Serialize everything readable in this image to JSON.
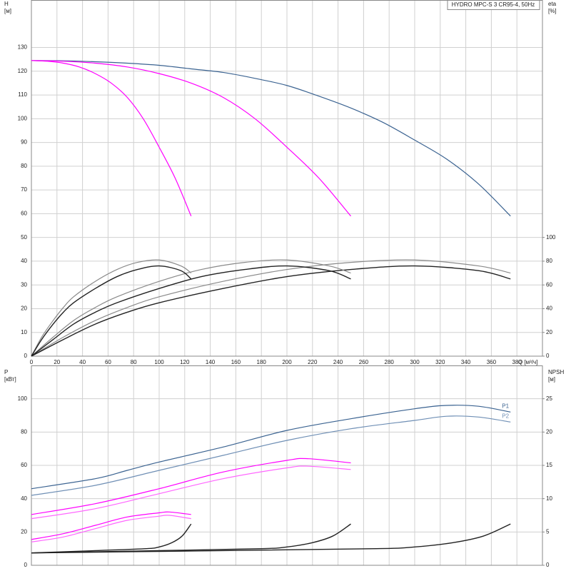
{
  "chart_data": [
    {
      "type": "line",
      "title": "HYDRO MPC-S 3 CR95-4, 50Hz",
      "x_label": "Q [м³/ч]",
      "y_label": [
        "H",
        "[м]"
      ],
      "y2_label": [
        "eta",
        "[%]"
      ],
      "xlim": [
        0,
        400
      ],
      "xticks": [
        0,
        20,
        40,
        60,
        80,
        100,
        120,
        140,
        160,
        180,
        200,
        220,
        240,
        260,
        280,
        300,
        320,
        340,
        360,
        380
      ],
      "ylim": [
        0,
        150
      ],
      "yticks": [
        0,
        10,
        20,
        30,
        40,
        50,
        60,
        70,
        80,
        90,
        100,
        110,
        120,
        130
      ],
      "y2lim": [
        0,
        300
      ],
      "y2ticks": [
        0,
        20,
        40,
        60,
        80,
        100
      ],
      "grid": true,
      "series": [
        {
          "color": "#3b6391",
          "x": [
            0,
            25,
            50,
            75,
            100,
            125,
            150,
            175,
            200,
            225,
            250,
            275,
            300,
            325,
            350,
            375
          ],
          "values": [
            124.5,
            124.4,
            124,
            123.4,
            122.5,
            121,
            119.5,
            117,
            114,
            109.5,
            104.5,
            98.5,
            91,
            83,
            72.5,
            59
          ]
        },
        {
          "color": "#ff00ff",
          "x": [
            0,
            25,
            50,
            75,
            100,
            125,
            150,
            175,
            200,
            225,
            250
          ],
          "values": [
            124.5,
            124.2,
            123.4,
            121.8,
            119,
            115,
            109,
            100,
            88,
            75,
            59
          ]
        },
        {
          "color": "#ff00ff",
          "x": [
            0,
            12.5,
            25,
            37.5,
            50,
            62.5,
            75,
            87.5,
            100,
            112.5,
            125
          ],
          "values": [
            124.5,
            124.2,
            123.4,
            121.8,
            119,
            115,
            109,
            100,
            88,
            75,
            59
          ]
        },
        {
          "color": "#8a8a8a",
          "axis": "y2",
          "x": [
            0,
            25,
            50,
            75,
            100,
            150,
            200,
            250,
            300,
            350,
            375
          ],
          "values": [
            0,
            16,
            30,
            41,
            50,
            63,
            73,
            79,
            81,
            76,
            70
          ]
        },
        {
          "color": "#222222",
          "axis": "y2",
          "x": [
            0,
            25,
            50,
            75,
            100,
            150,
            200,
            250,
            300,
            350,
            375
          ],
          "values": [
            0,
            14,
            27,
            37,
            45,
            57,
            67,
            73,
            76,
            72,
            65
          ]
        },
        {
          "color": "#8a8a8a",
          "axis": "y2",
          "x": [
            0,
            17,
            33,
            50,
            67,
            100,
            133,
            167,
            200,
            233,
            250
          ],
          "values": [
            0,
            16,
            30,
            41,
            50,
            63,
            73,
            79,
            81,
            76,
            70
          ]
        },
        {
          "color": "#222222",
          "axis": "y2",
          "x": [
            0,
            17,
            33,
            50,
            67,
            100,
            133,
            167,
            200,
            233,
            250
          ],
          "values": [
            0,
            14,
            27,
            37,
            45,
            57,
            67,
            73,
            76,
            72,
            65
          ]
        },
        {
          "color": "#8a8a8a",
          "axis": "y2",
          "x": [
            0,
            8,
            17,
            25,
            33,
            50,
            67,
            83,
            100,
            117,
            125
          ],
          "values": [
            0,
            16,
            30,
            41,
            50,
            63,
            73,
            79,
            81,
            76,
            70
          ]
        },
        {
          "color": "#222222",
          "axis": "y2",
          "x": [
            0,
            8,
            17,
            25,
            33,
            50,
            67,
            83,
            100,
            117,
            125
          ],
          "values": [
            0,
            14,
            27,
            37,
            45,
            57,
            67,
            73,
            76,
            72,
            65
          ]
        }
      ]
    },
    {
      "type": "line",
      "y_label": [
        "P",
        "[кВт]"
      ],
      "y2_label": [
        "NPSH",
        "[м]"
      ],
      "xlim": [
        0,
        400
      ],
      "ylim": [
        0,
        120
      ],
      "yticks": [
        0,
        20,
        40,
        60,
        80,
        100
      ],
      "y2lim": [
        0,
        30
      ],
      "y2ticks": [
        0,
        5,
        10,
        15,
        20,
        25
      ],
      "grid": true,
      "series": [
        {
          "name": "P1",
          "color": "#3b6391",
          "x": [
            0,
            50,
            75,
            100,
            150,
            200,
            250,
            300,
            325,
            350,
            375
          ],
          "values": [
            46,
            52,
            57,
            62,
            71,
            81,
            88,
            94,
            96,
            95.5,
            92
          ]
        },
        {
          "name": "P2",
          "color": "#6f8fb5",
          "x": [
            0,
            50,
            100,
            150,
            200,
            250,
            300,
            325,
            350,
            375
          ],
          "values": [
            42,
            48,
            57,
            66,
            75,
            82,
            87,
            89.5,
            89,
            86
          ]
        },
        {
          "color": "#ff00ff",
          "x": [
            0,
            50,
            100,
            150,
            200,
            217,
            250
          ],
          "values": [
            30.5,
            37,
            46,
            56,
            63,
            64,
            61.5
          ]
        },
        {
          "color": "#ff66ff",
          "x": [
            0,
            50,
            100,
            150,
            200,
            217,
            250
          ],
          "values": [
            28,
            34,
            43,
            52,
            58.5,
            59.5,
            57.5
          ]
        },
        {
          "color": "#ff00ff",
          "x": [
            0,
            25,
            50,
            75,
            100,
            108,
            125
          ],
          "values": [
            15.5,
            19,
            24,
            29,
            31.5,
            32,
            30.5
          ]
        },
        {
          "color": "#ff66ff",
          "x": [
            0,
            25,
            50,
            75,
            100,
            108,
            125
          ],
          "values": [
            14,
            17,
            22,
            27,
            29.5,
            30,
            28
          ]
        },
        {
          "color": "#222222",
          "axis": "y2",
          "x": [
            0,
            50,
            90,
            100,
            110,
            118,
            125
          ],
          "values": [
            1.85,
            2.2,
            2.5,
            2.75,
            3.4,
            4.4,
            6.2
          ]
        },
        {
          "color": "#222222",
          "axis": "y2",
          "x": [
            0,
            100,
            180,
            200,
            220,
            236,
            250
          ],
          "values": [
            1.85,
            2.2,
            2.5,
            2.75,
            3.4,
            4.4,
            6.2
          ]
        },
        {
          "color": "#222222",
          "axis": "y2",
          "x": [
            0,
            150,
            270,
            300,
            330,
            354,
            375
          ],
          "values": [
            1.85,
            2.2,
            2.5,
            2.75,
            3.4,
            4.4,
            6.2
          ]
        }
      ]
    }
  ]
}
